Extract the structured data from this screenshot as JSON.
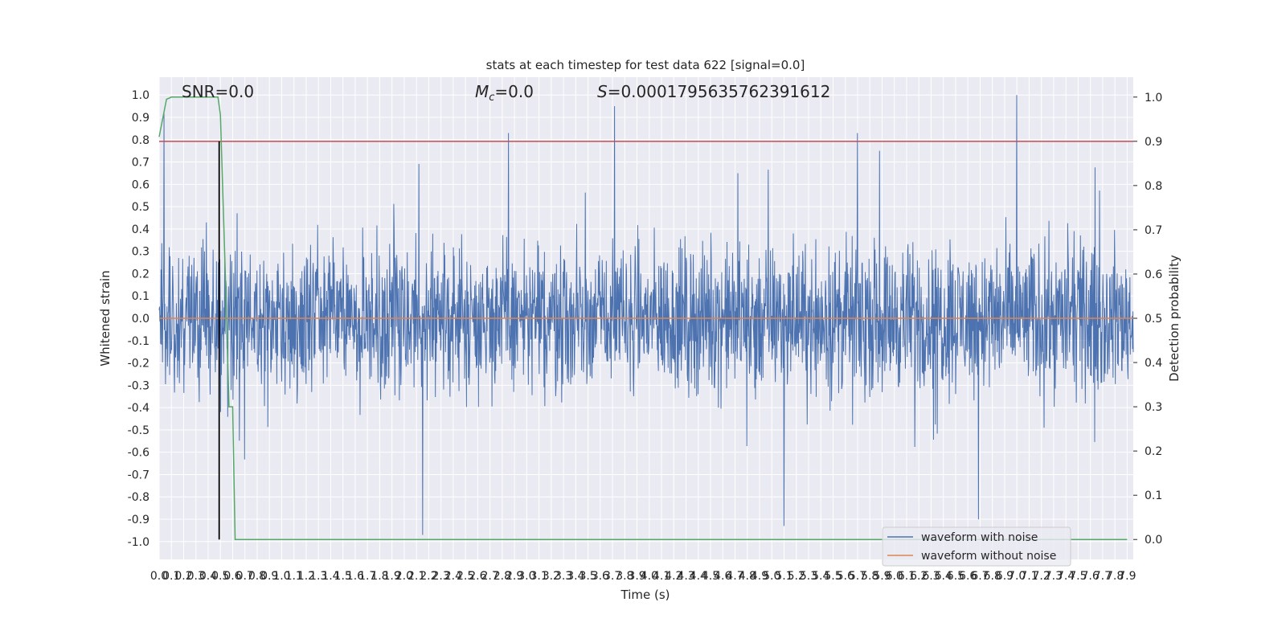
{
  "chart_data": {
    "type": "line",
    "title": "stats at each timestep for test data 622 [signal=0.0]",
    "xlabel": "Time (s)",
    "ylabel_left": "Whitened strain",
    "ylabel_right": "Detection probability",
    "xlim": [
      0.0,
      7.95
    ],
    "ylim_left": [
      -1.08,
      1.08
    ],
    "ylim_right": [
      -0.045,
      1.045
    ],
    "xtick_labels": [
      "0.0",
      "0.1",
      "0.2",
      "0.3",
      "0.4",
      "0.5",
      "0.6",
      "0.7",
      "0.8",
      "0.9",
      "1.0",
      "1.1",
      "1.2",
      "1.3",
      "1.4",
      "1.5",
      "1.6",
      "1.7",
      "1.8",
      "1.9",
      "2.0",
      "2.1",
      "2.2",
      "2.3",
      "2.4",
      "2.5",
      "2.6",
      "2.7",
      "2.8",
      "2.9",
      "3.0",
      "3.1",
      "3.2",
      "3.3",
      "3.4",
      "3.5",
      "3.6",
      "3.7",
      "3.8",
      "3.9",
      "4.0",
      "4.1",
      "4.2",
      "4.3",
      "4.4",
      "4.5",
      "4.6",
      "4.7",
      "4.8",
      "4.9",
      "5.0",
      "5.1",
      "5.2",
      "5.3",
      "5.4",
      "5.5",
      "5.6",
      "5.7",
      "5.8",
      "5.9",
      "6.0",
      "6.1",
      "6.2",
      "6.3",
      "6.4",
      "6.5",
      "6.6",
      "6.7",
      "6.8",
      "6.9",
      "7.0",
      "7.1",
      "7.2",
      "7.3",
      "7.4",
      "7.5",
      "7.6",
      "7.7",
      "7.8",
      "7.9"
    ],
    "ytick_labels_left": [
      "-1.0",
      "-0.9",
      "-0.8",
      "-0.7",
      "-0.6",
      "-0.5",
      "-0.4",
      "-0.3",
      "-0.2",
      "-0.1",
      "0.0",
      "0.1",
      "0.2",
      "0.3",
      "0.4",
      "0.5",
      "0.6",
      "0.7",
      "0.8",
      "0.9",
      "1.0"
    ],
    "ytick_labels_right": [
      "0.0",
      "0.1",
      "0.2",
      "0.3",
      "0.4",
      "0.5",
      "0.6",
      "0.7",
      "0.8",
      "0.9",
      "1.0"
    ],
    "annotations": {
      "snr": "SNR=0.0",
      "mc": "=0.0",
      "mc_symbol": "M",
      "mc_subscript": "c",
      "s": "=0.0001795635762391612",
      "s_symbol": "S"
    },
    "legend": {
      "placement": "lower right",
      "entries": [
        {
          "label": "waveform with noise",
          "color": "#4c72b0"
        },
        {
          "label": "waveform without noise",
          "color": "#dd8452"
        }
      ]
    },
    "series": [
      {
        "name": "waveform with noise",
        "axis": "left",
        "color": "#4c72b0",
        "style": "dense noise, roughly |y| <= 0.4 with spikes to about ±0.9",
        "notable_peaks": [
          {
            "x": 7.0,
            "y": 1.0
          },
          {
            "x": 2.15,
            "y": -0.97
          },
          {
            "x": 2.85,
            "y": 0.83
          },
          {
            "x": 5.7,
            "y": 0.83
          },
          {
            "x": 5.1,
            "y": -0.93
          }
        ]
      },
      {
        "name": "waveform without noise",
        "axis": "left",
        "color": "#dd8452",
        "x": [
          0.0,
          7.95
        ],
        "y": [
          0.0,
          0.0
        ]
      },
      {
        "name": "detection probability",
        "axis": "right",
        "color": "#55a868",
        "x": [
          0.0,
          0.06,
          0.1,
          0.3,
          0.48,
          0.5,
          0.54,
          0.57,
          0.6,
          0.62,
          1.0,
          7.9
        ],
        "y": [
          0.91,
          0.995,
          1.0,
          1.0,
          1.0,
          0.96,
          0.6,
          0.3,
          0.3,
          0.0,
          0.0,
          0.0
        ]
      }
    ],
    "threshold_line": {
      "axis": "right",
      "y": 0.9,
      "color": "#c44e52"
    },
    "vertical_marker": {
      "x": 0.49,
      "color": "#000000"
    }
  }
}
